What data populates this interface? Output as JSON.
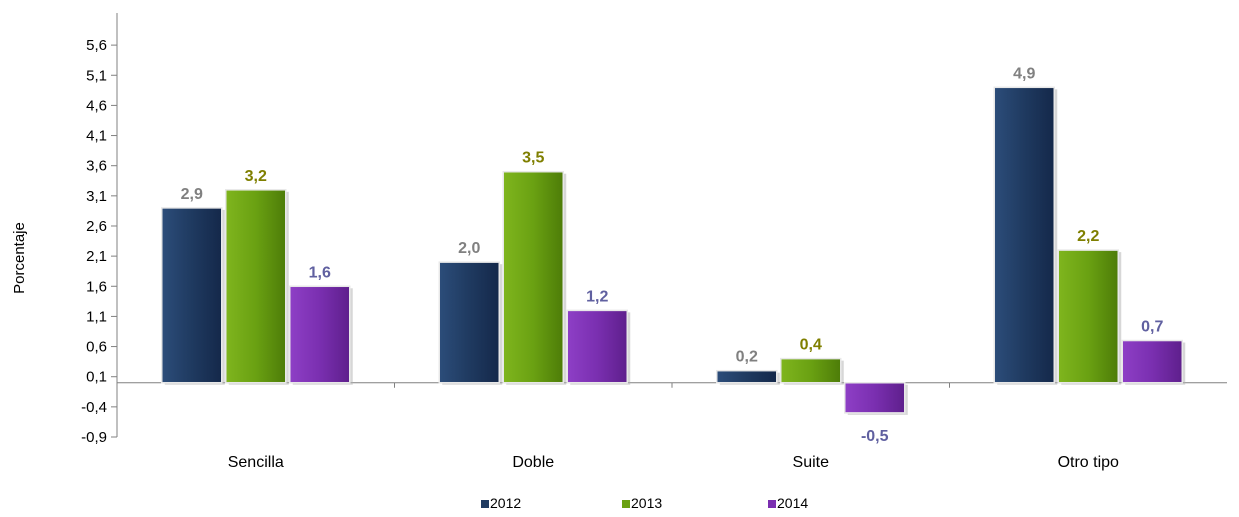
{
  "chart_data": {
    "type": "bar",
    "title": "",
    "xlabel": "",
    "ylabel": "Porcentaje",
    "categories": [
      "Sencilla",
      "Doble",
      "Suite",
      "Otro tipo"
    ],
    "series": [
      {
        "name": "2012",
        "values": [
          2.9,
          2.0,
          0.2,
          4.9
        ],
        "labels": [
          "2,9",
          "2,0",
          "0,2",
          "4,9"
        ],
        "color": "#1f3a60",
        "label_color": "#808080"
      },
      {
        "name": "2013",
        "values": [
          3.2,
          3.5,
          0.4,
          2.2
        ],
        "labels": [
          "3,2",
          "3,5",
          "0,4",
          "2,2"
        ],
        "color": "#6aa112",
        "label_color": "#7f7f00"
      },
      {
        "name": "2014",
        "values": [
          1.6,
          1.2,
          -0.5,
          0.7
        ],
        "labels": [
          "1,6",
          "1,2",
          "-0,5",
          "0,7"
        ],
        "color": "#7a2fb0",
        "label_color": "#6060a0"
      }
    ],
    "y_ticks": [
      -0.9,
      -0.4,
      0.1,
      0.6,
      1.1,
      1.6,
      2.1,
      2.6,
      3.1,
      3.6,
      4.1,
      4.6,
      5.1,
      5.6
    ],
    "y_tick_labels": [
      "-0,9",
      "-0,4",
      "0,1",
      "0,6",
      "1,1",
      "1,6",
      "2,1",
      "2,6",
      "3,1",
      "3,6",
      "4,1",
      "4,6",
      "5,1",
      "5,6"
    ],
    "ylim": [
      -0.9,
      6.0
    ],
    "baseline": 0.0,
    "grid": false,
    "legend": "bottom"
  }
}
